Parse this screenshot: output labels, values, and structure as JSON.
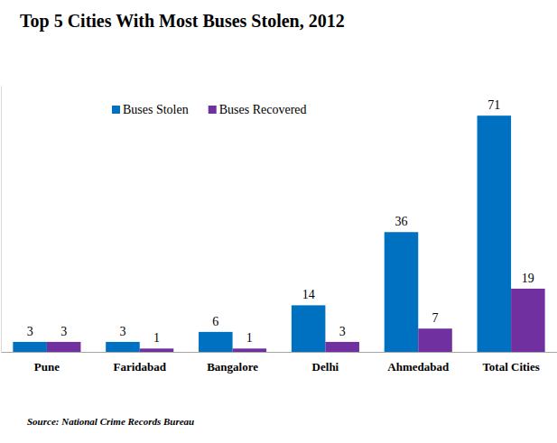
{
  "chart_data": {
    "type": "bar",
    "title": "Top 5 Cities With Most Buses Stolen, 2012",
    "source": "Source: National Crime Records Bureau",
    "categories": [
      "Pune",
      "Faridabad",
      "Bangalore",
      "Delhi",
      "Ahmedabad",
      "Total Cities"
    ],
    "series": [
      {
        "name": "Buses Stolen",
        "color": "#0070c0",
        "values": [
          3,
          3,
          6,
          14,
          36,
          71
        ]
      },
      {
        "name": "Buses Recovered",
        "color": "#7030a0",
        "values": [
          3,
          1,
          1,
          3,
          7,
          19
        ]
      }
    ],
    "ylim": [
      0,
      80
    ],
    "grid": false,
    "legend": "top",
    "data_labels": true,
    "tick_labels": "x"
  }
}
